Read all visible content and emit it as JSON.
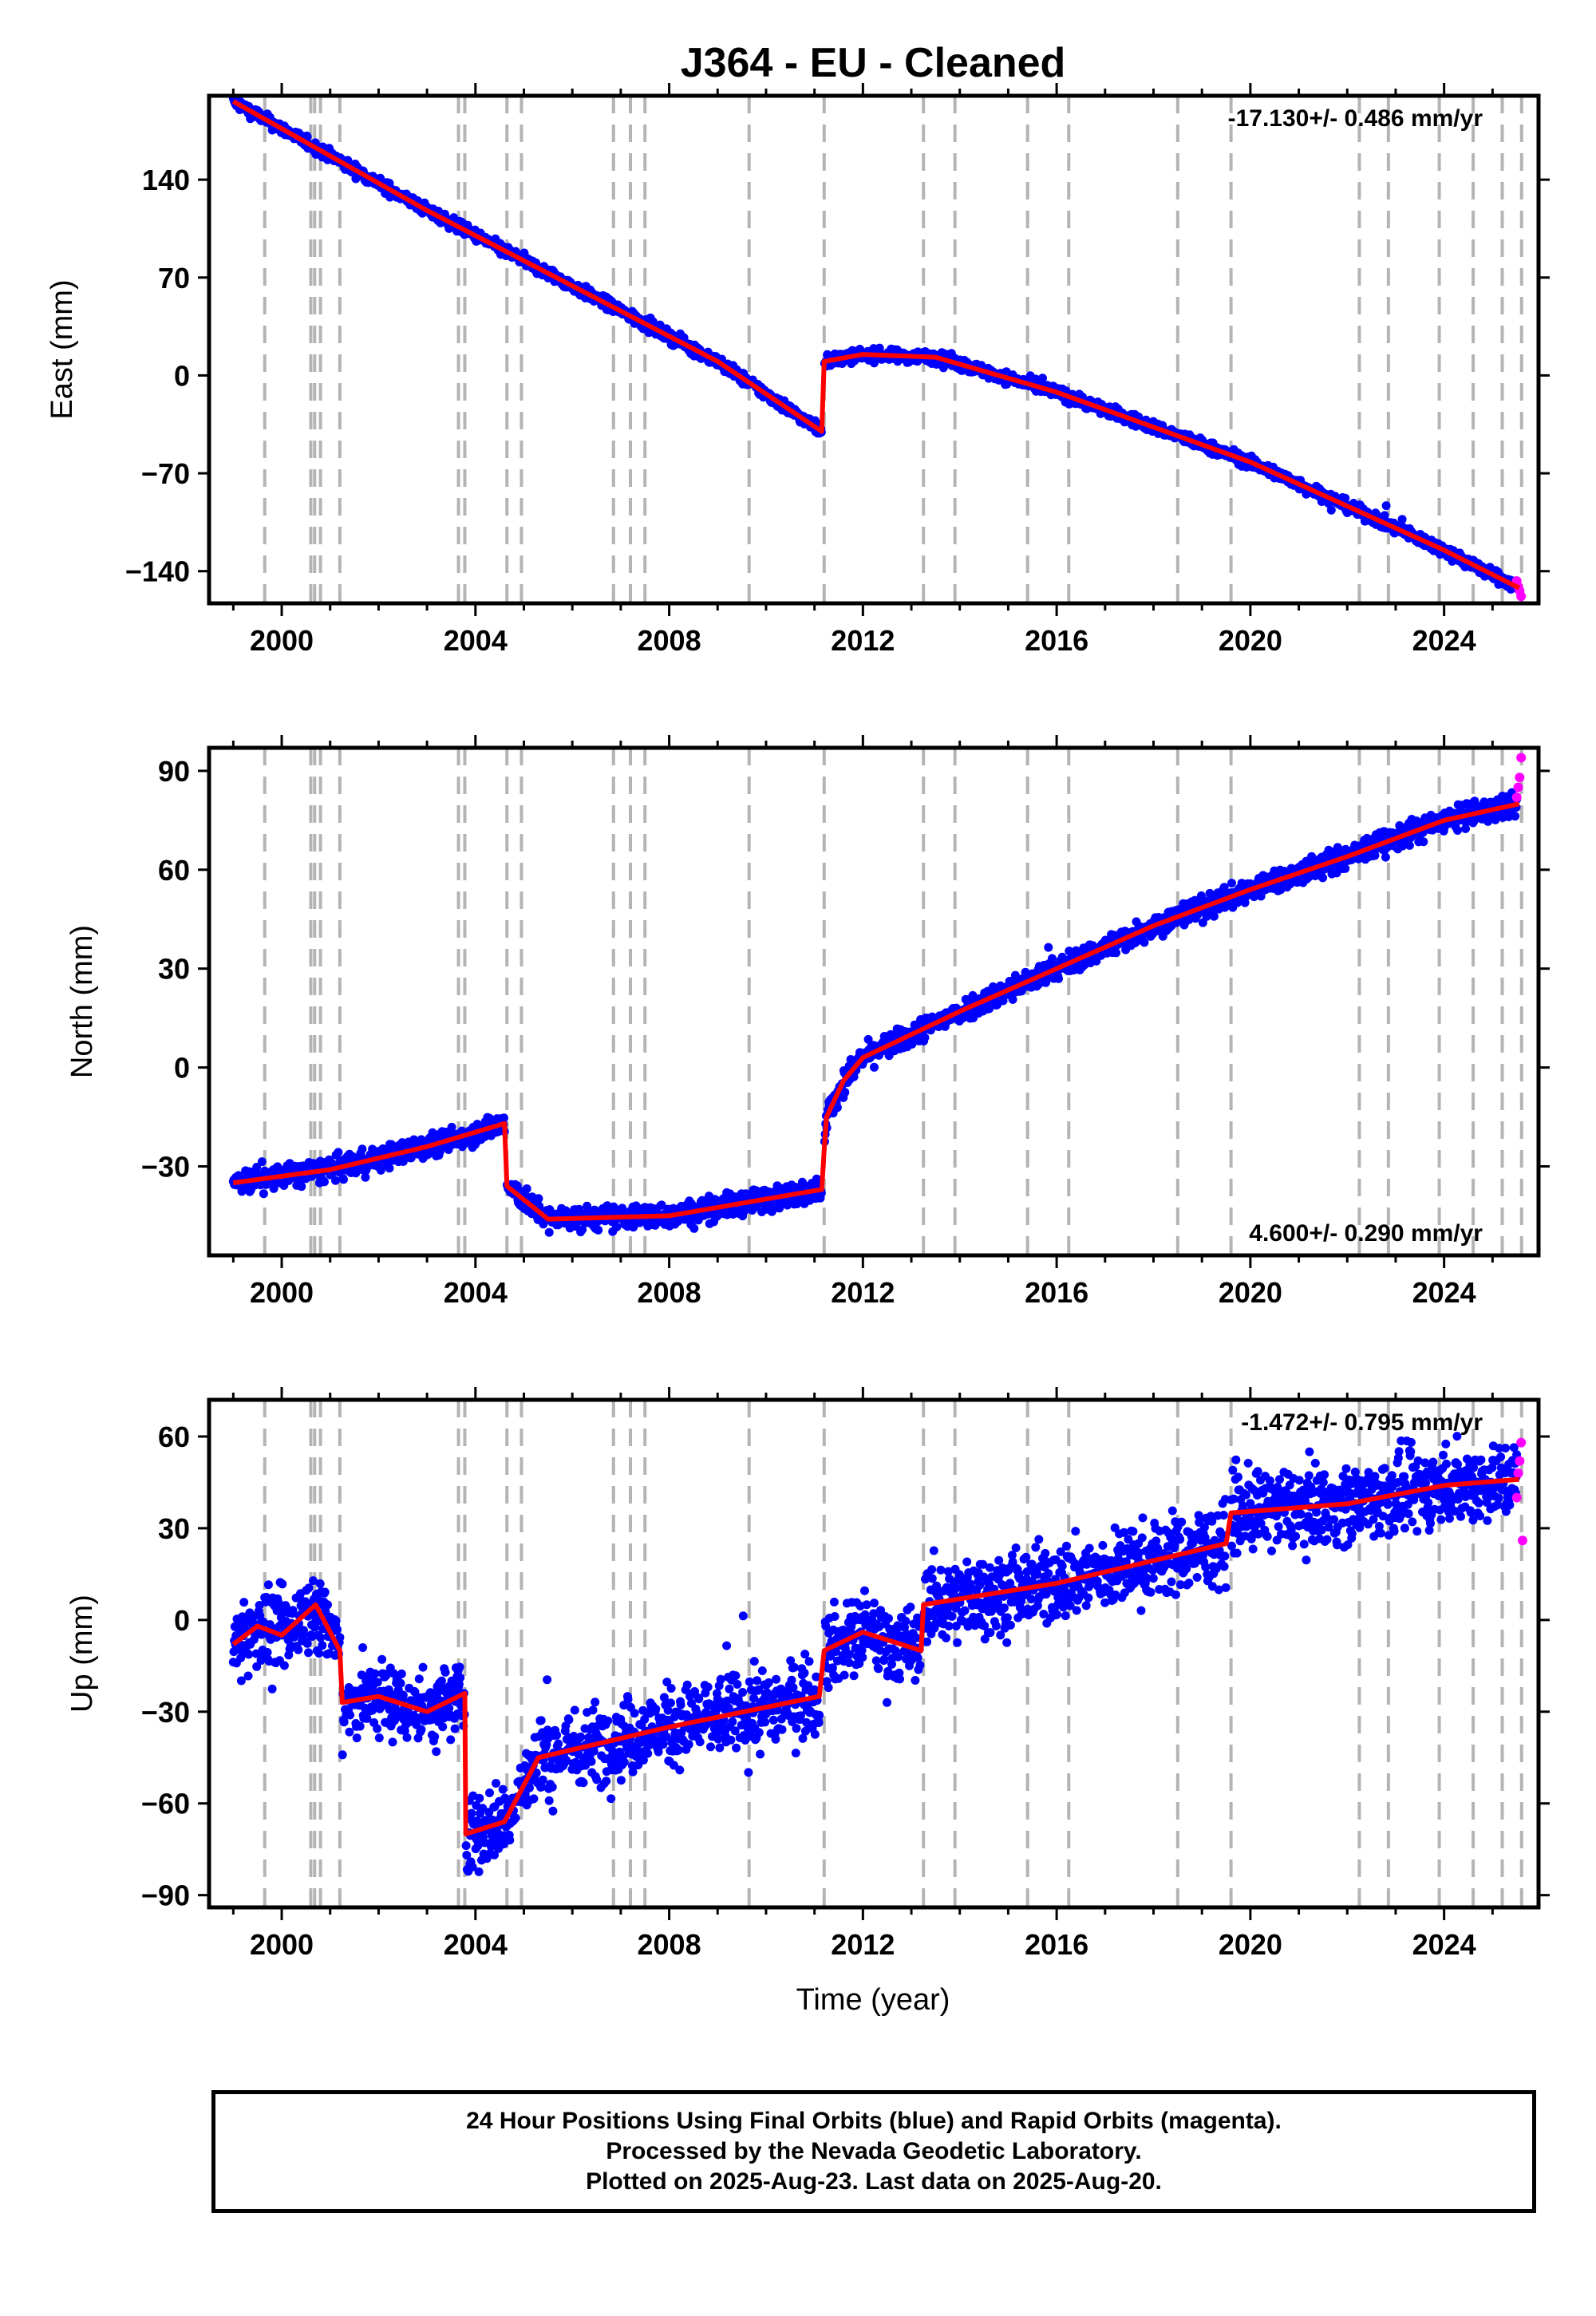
{
  "chart_data": {
    "title": "J364  - EU - Cleaned",
    "xlabel": "Time (year)",
    "x_ticks": [
      2000,
      2004,
      2008,
      2012,
      2016,
      2020,
      2024
    ],
    "xlim": [
      1998.5,
      2025.95
    ],
    "equipment_change_years": [
      1999.65,
      2000.6,
      2000.68,
      2000.8,
      2001.2,
      2003.65,
      2003.78,
      2004.65,
      2004.95,
      2006.85,
      2007.2,
      2007.5,
      2009.65,
      2011.2,
      2013.25,
      2013.9,
      2015.4,
      2016.25,
      2018.5,
      2019.6,
      2022.25,
      2022.85,
      2023.9,
      2024.6,
      2025.2,
      2025.6
    ],
    "panels": [
      {
        "type": "scatter",
        "ylabel": "East (mm)",
        "y_ticks": [
          140,
          70,
          0,
          -70,
          -140
        ],
        "ylim": [
          -163,
          200
        ],
        "rate_label": "-17.130+/- 0.486 mm/yr",
        "rate_position": "top-right",
        "noise_mm": 3,
        "model_segments": [
          {
            "x": [
              1999.0,
              2003.0,
              2005.0,
              2009.0,
              2011.15
            ],
            "y": [
              196,
              118,
              82,
              10,
              -40
            ]
          },
          {
            "x": [
              2011.2,
              2012.0,
              2013.5,
              2016.0,
              2020.0,
              2024.0,
              2025.55
            ],
            "y": [
              10,
              15,
              13,
              -12,
              -62,
              -125,
              -152
            ]
          }
        ],
        "rapid_points": {
          "x": [
            2025.5,
            2025.53,
            2025.56,
            2025.59
          ],
          "y": [
            -147,
            -151,
            -154,
            -158
          ]
        }
      },
      {
        "type": "scatter",
        "ylabel": "North (mm)",
        "y_ticks": [
          90,
          60,
          30,
          0,
          -30
        ],
        "ylim": [
          -57,
          97
        ],
        "rate_label": "4.600+/- 0.290 mm/yr",
        "rate_position": "bottom-right",
        "noise_mm": 2.5,
        "model_segments": [
          {
            "x": [
              1999.0,
              2001.0,
              2003.0,
              2004.6
            ],
            "y": [
              -35,
              -31,
              -24,
              -17
            ]
          },
          {
            "x": [
              2004.65,
              2005.5,
              2008.0,
              2011.15
            ],
            "y": [
              -36,
              -46,
              -45,
              -37
            ]
          },
          {
            "x": [
              2011.2,
              2011.25,
              2011.6,
              2012.0,
              2014.0,
              2016.0,
              2018.0,
              2020.0,
              2022.0,
              2024.0,
              2025.55
            ],
            "y": [
              -25,
              -15,
              -4,
              3,
              17,
              30,
              43,
              54,
              64,
              75,
              80
            ]
          }
        ],
        "rapid_points": {
          "x": [
            2025.5,
            2025.53,
            2025.56,
            2025.59
          ],
          "y": [
            82,
            85,
            88,
            94
          ]
        }
      },
      {
        "type": "scatter",
        "ylabel": "Up (mm)",
        "y_ticks": [
          60,
          30,
          0,
          -30,
          -60,
          -90
        ],
        "ylim": [
          -94,
          72
        ],
        "rate_label": "-1.472+/- 0.795 mm/yr",
        "rate_position": "top-right",
        "noise_mm": 9,
        "model_segments": [
          {
            "x": [
              1999.0,
              1999.5,
              2000.0,
              2000.7,
              2001.2
            ],
            "y": [
              -8,
              -2,
              -5,
              5,
              -10
            ]
          },
          {
            "x": [
              2001.25,
              2002.0,
              2003.0,
              2003.78
            ],
            "y": [
              -27,
              -25,
              -30,
              -24
            ]
          },
          {
            "x": [
              2003.8,
              2004.6,
              2005.3,
              2008.0,
              2011.1
            ],
            "y": [
              -70,
              -66,
              -45,
              -35,
              -25
            ]
          },
          {
            "x": [
              2011.2,
              2012.0,
              2013.2
            ],
            "y": [
              -10,
              -4,
              -10
            ]
          },
          {
            "x": [
              2013.25,
              2016.0,
              2019.5
            ],
            "y": [
              5,
              12,
              25
            ]
          },
          {
            "x": [
              2019.6,
              2022.0,
              2024.0,
              2025.55
            ],
            "y": [
              35,
              38,
              44,
              46
            ]
          }
        ],
        "rapid_points": {
          "x": [
            2025.5,
            2025.53,
            2025.56,
            2025.59,
            2025.62
          ],
          "y": [
            40,
            48,
            52,
            58,
            26
          ]
        }
      }
    ],
    "series": [
      {
        "name": "24 Hour Positions Using Final Orbits (blue)",
        "color": "#0000ff"
      },
      {
        "name": "Rapid Orbits (magenta)",
        "color": "#ff00ff"
      },
      {
        "name": "model",
        "color": "#ff0000"
      }
    ],
    "gaps": [
      [
        2002.95,
        2003.0
      ]
    ]
  },
  "footer": {
    "line1": "24 Hour Positions Using Final Orbits (blue) and Rapid Orbits (magenta).",
    "line2": "Processed by the Nevada Geodetic Laboratory.",
    "line3": "Plotted on 2025-Aug-23. Last data on 2025-Aug-20."
  },
  "colors": {
    "final_orbits": "#0000ff",
    "rapid_orbits": "#ff00ff",
    "model": "#ff0000",
    "event_lines": "#b4b4b4"
  }
}
